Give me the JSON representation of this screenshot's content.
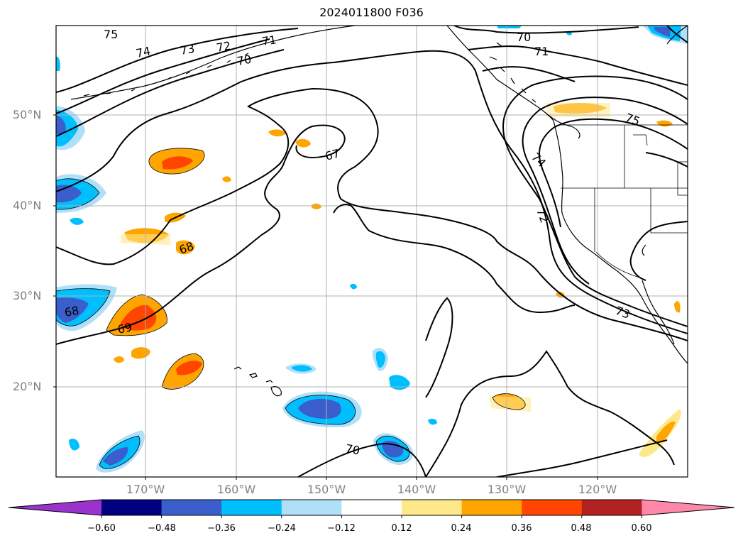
{
  "title": "2024011800 F036",
  "map": {
    "lat_labels": [
      "50°N",
      "40°N",
      "30°N",
      "20°N"
    ],
    "lon_labels": [
      "170°W",
      "160°W",
      "150°W",
      "140°W",
      "130°W",
      "120°W"
    ],
    "contour_labels": [
      "75",
      "74",
      "73",
      "72",
      "71",
      "70",
      "67",
      "68",
      "68",
      "69",
      "70",
      "70",
      "71",
      "75",
      "74",
      "72",
      "73"
    ]
  },
  "colorbar": {
    "ticks": [
      "−0.60",
      "−0.48",
      "−0.36",
      "−0.24",
      "−0.12",
      "0.12",
      "0.24",
      "0.36",
      "0.48",
      "0.60"
    ],
    "colors": [
      "#9933cc",
      "#000080",
      "#3a5fcd",
      "#00bfff",
      "#b0e0f8",
      "#ffffff",
      "#ffe88a",
      "#ffa500",
      "#ff4500",
      "#b22222",
      "#ff88aa"
    ]
  }
}
